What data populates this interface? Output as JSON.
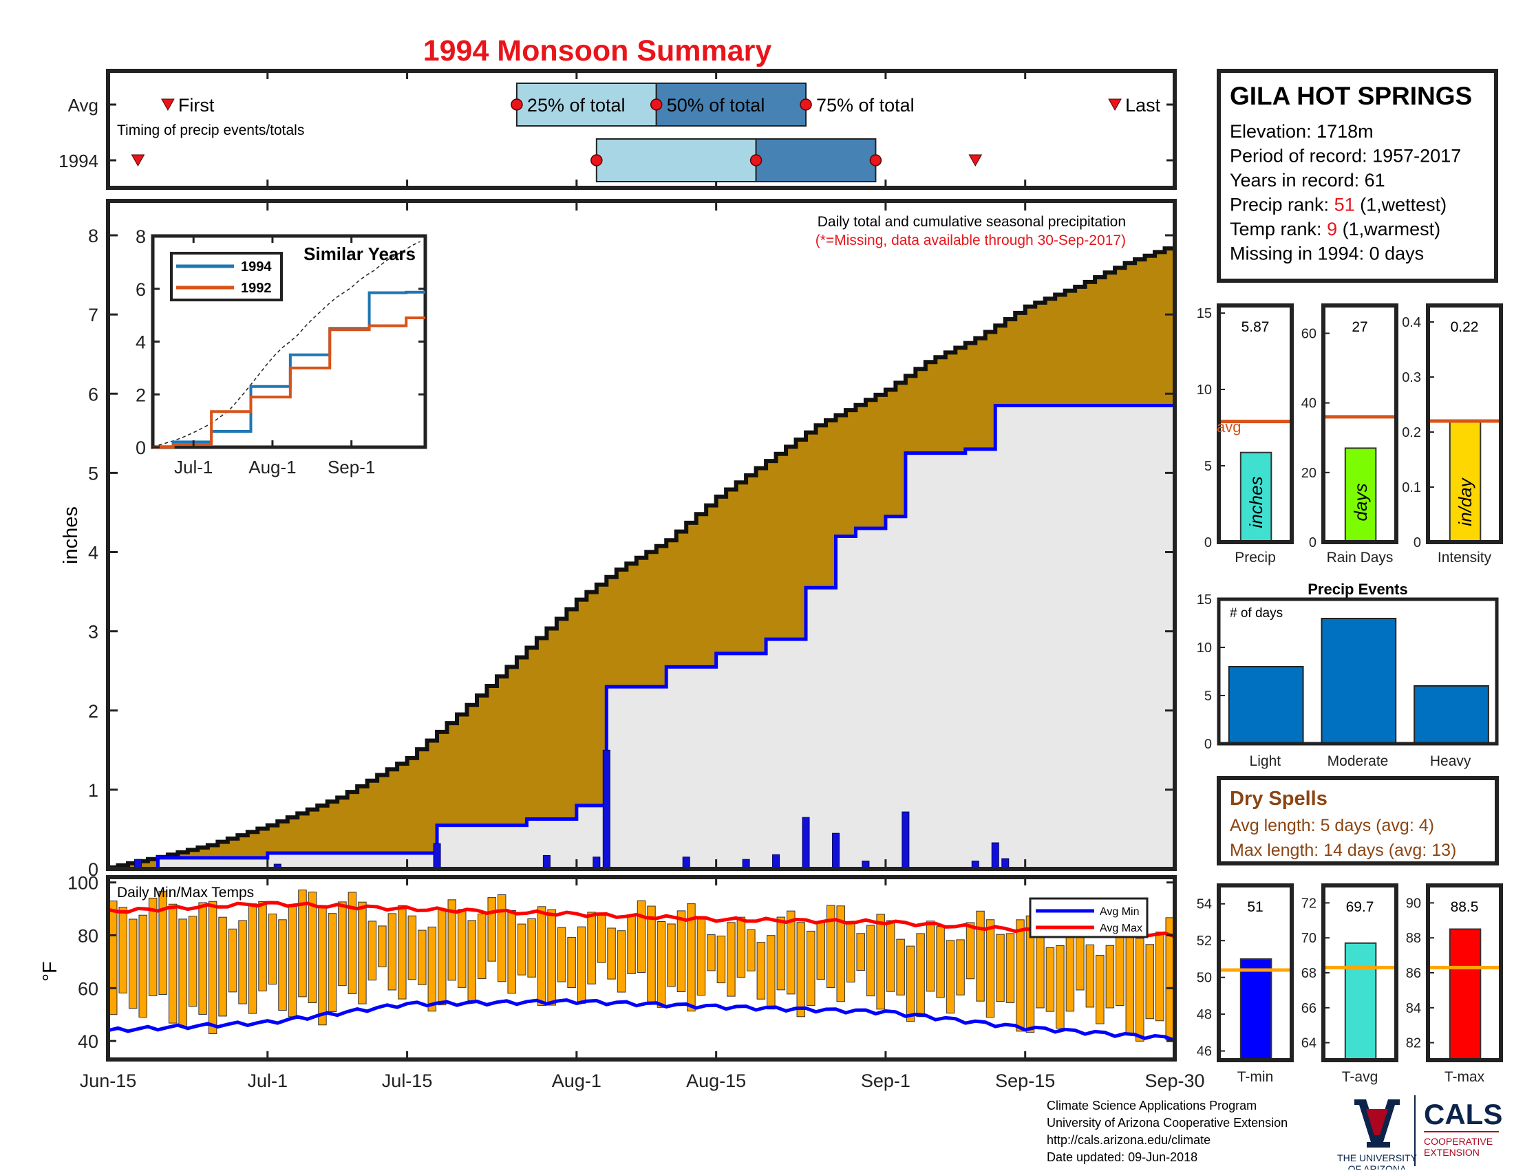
{
  "title": "1994 Monsoon Summary",
  "timing_panel": {
    "row_labels": [
      "Avg",
      "1994"
    ],
    "caption": "Timing of precip events/totals",
    "avg": {
      "first": "Jun-21",
      "q25": "Jul-26",
      "q50": "Aug-9",
      "q75": "Aug-24",
      "last": "Sep-24"
    },
    "year": {
      "first": "Jun-18",
      "q25": "Aug-3",
      "q50": "Aug-19",
      "q75": "Aug-31",
      "last": "Sep-10"
    },
    "labels": {
      "first": "First",
      "q25": "25% of total",
      "q50": "50% of total",
      "q75": "75% of total",
      "last": "Last"
    },
    "colors": {
      "light": "#a9d6e5",
      "dark": "#4682b4",
      "marker": "#e8151b"
    }
  },
  "station": {
    "name": "GILA HOT SPRINGS",
    "lines": [
      {
        "label": "Elevation: 1718m"
      },
      {
        "label": "Period of record: 1957-2017"
      },
      {
        "label": "Years in record: 61"
      },
      {
        "prefix": "Precip rank: ",
        "value": "51",
        "suffix": " (1,wettest)"
      },
      {
        "prefix": "Temp rank: ",
        "value": "9",
        "suffix": " (1,warmest)"
      },
      {
        "label": "Missing in 1994: 0 days"
      }
    ]
  },
  "main_chart": {
    "ylabel": "inches",
    "ylim": [
      0,
      8
    ],
    "yticks": [
      0,
      1,
      2,
      3,
      4,
      5,
      6,
      7,
      8
    ],
    "note_line1": "Daily total and cumulative seasonal precipitation",
    "note_line2": "(*=Missing, data available through 30-Sep-2017)",
    "colors": {
      "avg_fill": "#b8860b",
      "year_fill": "#e8e8e8",
      "year_line": "#0000ff",
      "bars": "#1010d8"
    }
  },
  "x_axis": {
    "ticks": [
      {
        "label": "Jun-15",
        "day": 0
      },
      {
        "label": "Jul-1",
        "day": 16
      },
      {
        "label": "Jul-15",
        "day": 30
      },
      {
        "label": "Aug-1",
        "day": 47
      },
      {
        "label": "Aug-15",
        "day": 61
      },
      {
        "label": "Sep-1",
        "day": 78
      },
      {
        "label": "Sep-15",
        "day": 92
      },
      {
        "label": "Sep-30",
        "day": 107
      }
    ]
  },
  "inset": {
    "title": "Similar Years",
    "legend": [
      {
        "name": "1994",
        "color": "#1f77b4"
      },
      {
        "name": "1992",
        "color": "#d95319"
      }
    ],
    "yticks": [
      0,
      2,
      4,
      6,
      8
    ],
    "xticks": [
      "Jul-1",
      "Aug-1",
      "Sep-1"
    ]
  },
  "stat_bars": [
    {
      "name": "Precip",
      "value": "5.87",
      "unit": "inches",
      "avg": 7.9,
      "ylim": [
        0,
        15.5
      ],
      "ticks": [
        0,
        5,
        10,
        15
      ],
      "color": "#40e0d0",
      "avg_label": "avg"
    },
    {
      "name": "Rain Days",
      "value": "27",
      "unit": "days",
      "avg": 36,
      "ylim": [
        0,
        68
      ],
      "ticks": [
        0,
        20,
        40,
        60
      ],
      "color": "#7cfc00"
    },
    {
      "name": "Intensity",
      "value": "0.22",
      "unit": "in/day",
      "avg": 0.22,
      "ylim": [
        0,
        0.43
      ],
      "ticks": [
        0,
        0.1,
        0.2,
        0.3,
        0.4
      ],
      "color": "#ffd700"
    }
  ],
  "precip_events": {
    "title": "Precip Events",
    "ylabel": "# of days",
    "categories": [
      "Light",
      "Moderate",
      "Heavy"
    ],
    "values": [
      8,
      13,
      6
    ],
    "ylim": [
      0,
      15
    ],
    "ticks": [
      0,
      5,
      10,
      15
    ],
    "color": "#0070c0"
  },
  "dry_spells": {
    "title": "Dry Spells",
    "lines": [
      "Avg length: 5 days (avg: 4)",
      "Max length: 14 days (avg: 13)"
    ],
    "color": "#8b4513"
  },
  "temp_chart": {
    "ylabel": "°F",
    "label": "Daily Min/Max Temps",
    "ylim": [
      33,
      102
    ],
    "yticks": [
      40,
      60,
      80,
      100
    ],
    "legend": [
      {
        "name": "Avg Min",
        "color": "#0000ff"
      },
      {
        "name": "Avg Max",
        "color": "#ff0000"
      }
    ],
    "bar_color": "#ffa500"
  },
  "temp_bars": [
    {
      "name": "T-min",
      "value": "51",
      "avg": 50.4,
      "ylim": [
        45.5,
        55
      ],
      "ticks": [
        46,
        48,
        50,
        52,
        54
      ],
      "color": "#0000ff"
    },
    {
      "name": "T-avg",
      "value": "69.7",
      "avg": 68.3,
      "ylim": [
        63,
        73
      ],
      "ticks": [
        64,
        66,
        68,
        70,
        72
      ],
      "color": "#40e0d0"
    },
    {
      "name": "T-max",
      "value": "88.5",
      "avg": 86.3,
      "ylim": [
        81,
        91
      ],
      "ticks": [
        82,
        84,
        86,
        88,
        90
      ],
      "color": "#ff0000"
    }
  ],
  "footer": {
    "lines": [
      "Climate Science Applications Program",
      "University of Arizona Cooperative Extension",
      "http://cals.arizona.edu/climate",
      " Date updated: 09-Jun-2018"
    ]
  },
  "logos": {
    "ua_line1": "THE UNIVERSITY",
    "ua_line2": "OF ARIZONA",
    "cals": "CALS",
    "cals_line1": "COOPERATIVE",
    "cals_line2": "EXTENSION",
    "ua_color": "#0c234b",
    "red": "#ab0520"
  },
  "chart_data": [
    {
      "type": "area",
      "title": "Daily total and cumulative seasonal precipitation",
      "ylabel": "inches",
      "x_labels": [
        "Jun-15",
        "Jul-1",
        "Jul-15",
        "Aug-1",
        "Aug-15",
        "Sep-1",
        "Sep-15",
        "Sep-30"
      ],
      "ylim": [
        0,
        8
      ],
      "series": [
        {
          "name": "Avg cumulative",
          "x": [
            "Jun-15",
            "Jun-20",
            "Jun-25",
            "Jul-1",
            "Jul-8",
            "Jul-15",
            "Jul-20",
            "Jul-25",
            "Aug-1",
            "Aug-5",
            "Aug-10",
            "Aug-15",
            "Aug-20",
            "Aug-25",
            "Sep-1",
            "Sep-5",
            "Sep-10",
            "Sep-15",
            "Sep-20",
            "Sep-25",
            "Sep-30"
          ],
          "values": [
            0.02,
            0.15,
            0.3,
            0.55,
            0.9,
            1.4,
            1.95,
            2.55,
            3.4,
            3.78,
            4.15,
            4.7,
            5.15,
            5.6,
            6.05,
            6.4,
            6.7,
            7.1,
            7.35,
            7.65,
            7.88
          ]
        },
        {
          "name": "1994 cumulative",
          "x": [
            "Jun-15",
            "Jun-20",
            "Jul-1",
            "Jul-12",
            "Jul-18",
            "Jul-27",
            "Aug-1",
            "Aug-4",
            "Aug-10",
            "Aug-15",
            "Aug-20",
            "Aug-24",
            "Aug-27",
            "Aug-29",
            "Sep-1",
            "Sep-3",
            "Sep-9",
            "Sep-12",
            "Sep-30"
          ],
          "values": [
            0.0,
            0.14,
            0.2,
            0.2,
            0.55,
            0.63,
            0.8,
            2.3,
            2.55,
            2.72,
            2.9,
            3.55,
            4.2,
            4.3,
            4.45,
            5.25,
            5.3,
            5.85,
            5.87
          ]
        },
        {
          "name": "1994 daily",
          "type": "bar",
          "x": [
            "Jun-18",
            "Jul-2",
            "Jul-18",
            "Jul-29",
            "Aug-3",
            "Aug-4",
            "Aug-12",
            "Aug-18",
            "Aug-21",
            "Aug-24",
            "Aug-27",
            "Aug-30",
            "Sep-3",
            "Sep-10",
            "Sep-12",
            "Sep-13"
          ],
          "values": [
            0.12,
            0.06,
            0.32,
            0.17,
            0.15,
            1.5,
            0.15,
            0.12,
            0.18,
            0.65,
            0.45,
            0.1,
            0.72,
            0.1,
            0.33,
            0.13
          ]
        }
      ]
    },
    {
      "type": "line",
      "title": "Similar Years",
      "xticks": [
        "Jul-1",
        "Aug-1",
        "Sep-1"
      ],
      "ylim": [
        0,
        8
      ],
      "series": [
        {
          "name": "1994",
          "x": [
            "Jun-15",
            "Jul-1",
            "Jul-15",
            "Aug-1",
            "Aug-15",
            "Sep-1",
            "Sep-15",
            "Sep-30"
          ],
          "values": [
            0.0,
            0.2,
            0.6,
            2.3,
            3.5,
            4.5,
            5.85,
            5.87
          ]
        },
        {
          "name": "1992",
          "x": [
            "Jun-15",
            "Jul-1",
            "Jul-15",
            "Aug-1",
            "Aug-15",
            "Sep-1",
            "Sep-15",
            "Sep-30"
          ],
          "values": [
            0.0,
            0.1,
            1.35,
            1.9,
            3.0,
            4.45,
            4.6,
            4.9
          ]
        }
      ]
    },
    {
      "type": "bar",
      "title": "Precip Events",
      "categories": [
        "Light",
        "Moderate",
        "Heavy"
      ],
      "values": [
        8,
        13,
        6
      ],
      "ylabel": "# of days",
      "ylim": [
        0,
        15
      ]
    },
    {
      "type": "bar",
      "title": "Daily Min/Max Temps",
      "ylabel": "°F",
      "ylim": [
        33,
        102
      ],
      "series": [
        {
          "name": "Avg Min",
          "x": [
            "Jun-15",
            "Jul-1",
            "Jul-15",
            "Aug-1",
            "Aug-15",
            "Sep-1",
            "Sep-15",
            "Sep-30"
          ],
          "values": [
            44,
            47,
            54,
            55,
            53,
            51,
            45,
            41
          ]
        },
        {
          "name": "Avg Max",
          "x": [
            "Jun-15",
            "Jul-1",
            "Jul-15",
            "Aug-1",
            "Aug-15",
            "Sep-1",
            "Sep-15",
            "Sep-30"
          ],
          "values": [
            89,
            92,
            90,
            88,
            86,
            85,
            82,
            80
          ]
        }
      ]
    }
  ]
}
